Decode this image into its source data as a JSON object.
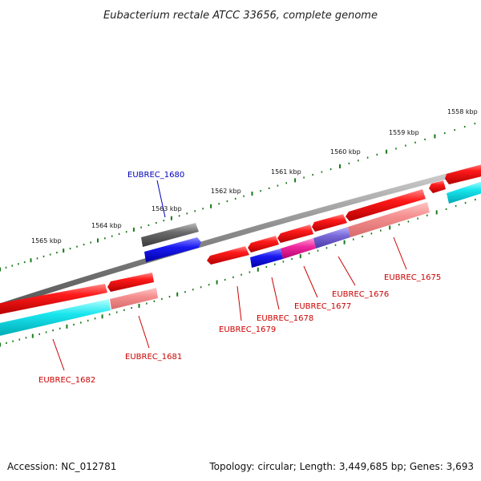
{
  "header": {
    "title": "Eubacterium rectale ATCC 33656, complete genome"
  },
  "footer": {
    "accession": "Accession: NC_012781",
    "summary": "Topology: circular; Length: 3,449,685 bp; Genes: 3,693"
  },
  "scale": {
    "outer_ticks": [
      "1565 kbp",
      "1564 kbp",
      "1563 kbp",
      "1562 kbp",
      "1561 kbp",
      "1560 kbp",
      "1559 kbp",
      "1558 kbp"
    ]
  },
  "colors": {
    "backbone": "#8c8c8c",
    "tick": "#1a7a1a",
    "cds_forward": "#ee1111",
    "cds_reverse": "#ee1111",
    "label_red": "#cc0000",
    "label_blue": "#0000bb",
    "blue_feature": "#1111ee",
    "grey_feature": "#666666",
    "cyan_feature": "#11e0e8",
    "pink_feature": "#f08888",
    "magenta_feature": "#ee2299",
    "purple_feature": "#7766cc"
  },
  "genes": [
    {
      "name": "EUBREC_1682"
    },
    {
      "name": "EUBREC_1681"
    },
    {
      "name": "EUBREC_1680"
    },
    {
      "name": "EUBREC_1679"
    },
    {
      "name": "EUBREC_1678"
    },
    {
      "name": "EUBREC_1677"
    },
    {
      "name": "EUBREC_1676"
    },
    {
      "name": "EUBREC_1675"
    }
  ]
}
